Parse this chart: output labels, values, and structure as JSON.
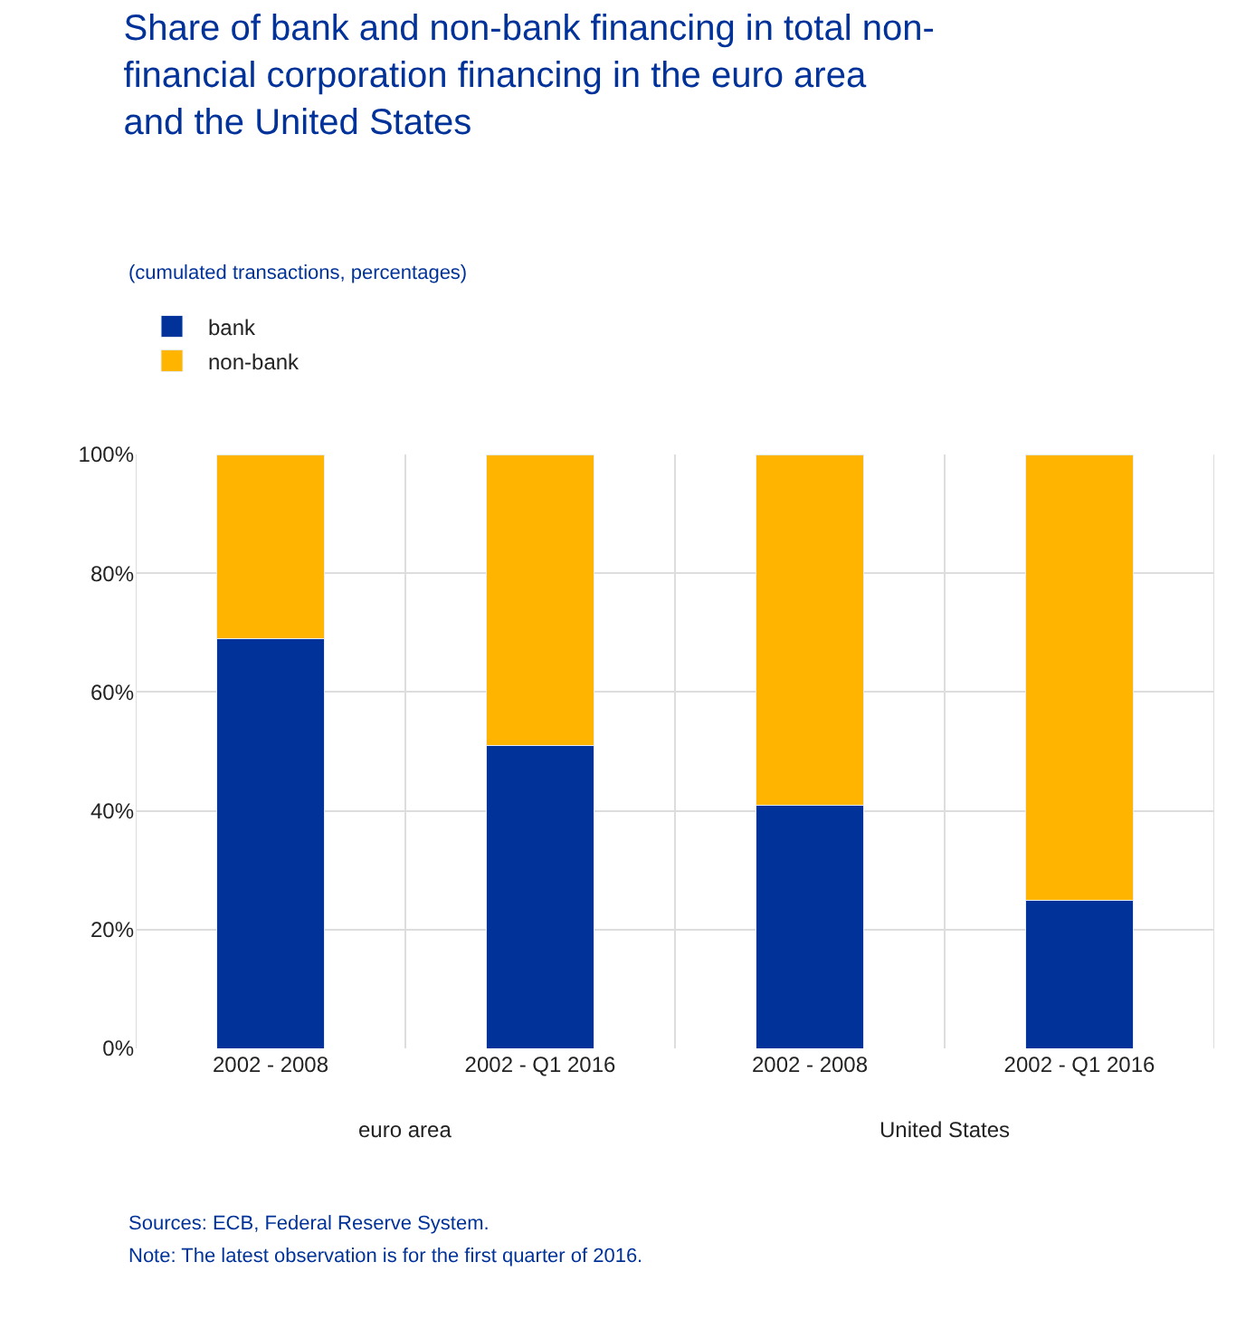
{
  "chart_data": {
    "type": "bar",
    "stacked": true,
    "title": "Share of bank and non-bank financing in total non-financial corporation financing in the euro area and the United States",
    "subtitle": "(cumulated transactions, percentages)",
    "categories": [
      "2002 - 2008",
      "2002 - Q1 2016",
      "2002 - 2008",
      "2002 - Q1 2016"
    ],
    "series": [
      {
        "name": "bank",
        "color": "#003299",
        "values": [
          69,
          51,
          41,
          25
        ]
      },
      {
        "name": "non-bank",
        "color": "#ffb400",
        "values": [
          31,
          49,
          59,
          75
        ]
      }
    ],
    "ylim": [
      0,
      100
    ],
    "yticks": [
      {
        "value": 0,
        "label": "0%"
      },
      {
        "value": 20,
        "label": "20%"
      },
      {
        "value": 40,
        "label": "40%"
      },
      {
        "value": 60,
        "label": "60%"
      },
      {
        "value": 80,
        "label": "80%"
      },
      {
        "value": 100,
        "label": "100%"
      }
    ],
    "grid": true,
    "legend": "top left",
    "annotations": [
      "euro area",
      "United States",
      "Sources: ECB, Federal Reserve System.",
      "Note: The latest observation is for the first quarter of 2016."
    ]
  }
}
